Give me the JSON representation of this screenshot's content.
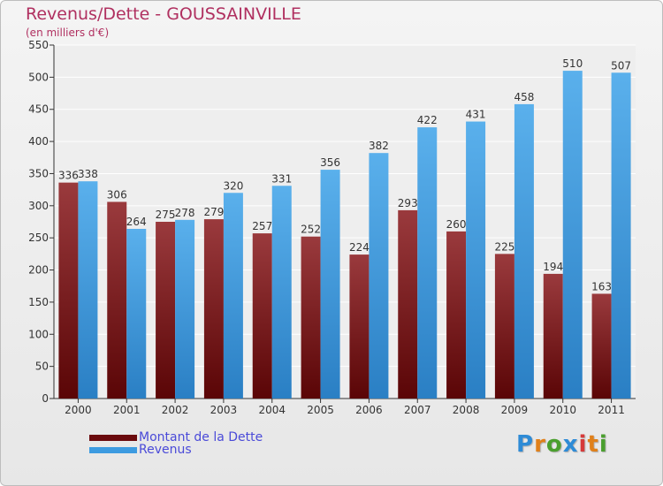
{
  "chart_data": {
    "type": "bar",
    "title": "Revenus/Dette - GOUSSAINVILLE",
    "subtitle": "(en milliers d'€)",
    "xlabel": "",
    "ylabel": "",
    "ylim": [
      0,
      550
    ],
    "yticks": [
      0,
      50,
      100,
      150,
      200,
      250,
      300,
      350,
      400,
      450,
      500,
      550
    ],
    "grid": true,
    "categories": [
      "2000",
      "2001",
      "2002",
      "2003",
      "2004",
      "2005",
      "2006",
      "2007",
      "2008",
      "2009",
      "2010",
      "2011"
    ],
    "series": [
      {
        "name": "Montant de la Dette",
        "color": "#7a1518",
        "values": [
          336,
          306,
          275,
          279,
          257,
          252,
          224,
          293,
          260,
          225,
          194,
          163
        ]
      },
      {
        "name": "Revenus",
        "color": "#3d9be0",
        "values": [
          338,
          264,
          278,
          320,
          331,
          356,
          382,
          422,
          431,
          458,
          510,
          507
        ]
      }
    ],
    "legend_position": "bottom-left"
  },
  "logo": {
    "letters": [
      "P",
      "r",
      "o",
      "x",
      "i",
      "t",
      "i"
    ],
    "colors": [
      "#2e8bd6",
      "#e0801a",
      "#4a9f2e",
      "#2e8bd6",
      "#d63a3a",
      "#e0801a",
      "#4a9f2e"
    ]
  }
}
